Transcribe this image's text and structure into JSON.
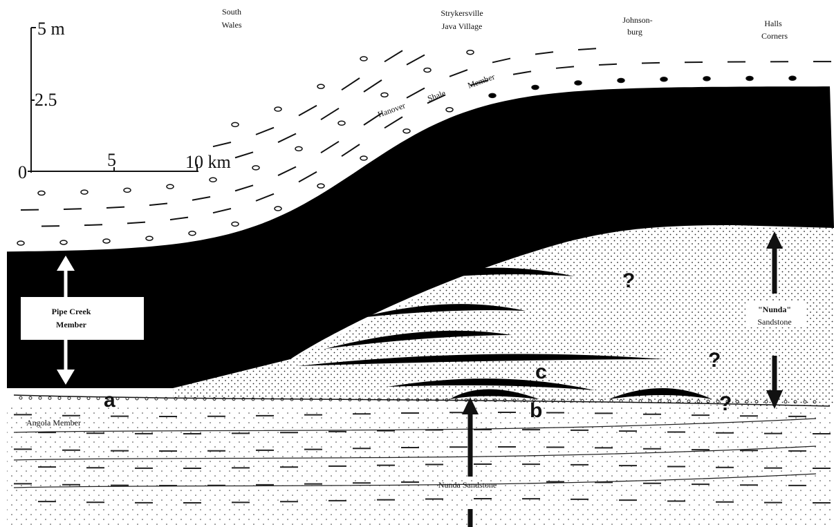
{
  "localities": [
    [
      "South",
      "Wales"
    ],
    [
      "Strykersville",
      "Java Village"
    ],
    [
      "Johnson-",
      "burg"
    ],
    [
      "Halls",
      "Corners"
    ]
  ],
  "vertical_scale": [
    "5 m",
    "2.5",
    "0"
  ],
  "horizontal_scale": [
    "5",
    "10 km"
  ],
  "hanover_member": [
    "Hanover",
    "Shale",
    "Member"
  ],
  "pipe_creek_member": [
    "Pipe Creek",
    "Member"
  ],
  "nunda_quoted": [
    "\"Nunda\"",
    "Sandstone"
  ],
  "angola_member": "Angola Member",
  "nunda_sandstone": "Nunda Sandstone",
  "question_marks": [
    "?",
    "?",
    "?"
  ],
  "points": [
    "a",
    "b",
    "c"
  ]
}
